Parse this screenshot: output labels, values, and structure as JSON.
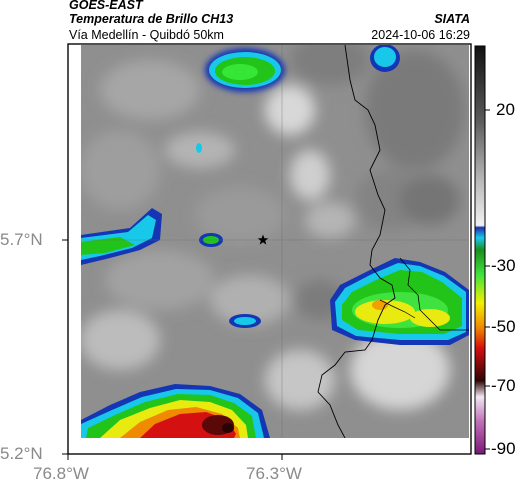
{
  "header": {
    "satellite": "GOES-EAST",
    "product": "Temperatura de Brillo CH13",
    "region": "Vía Medellín - Quibdó 50km",
    "agency": "SIATA",
    "datetime": "2024-10-06 16:29"
  },
  "map": {
    "lat_ticks": [
      "5.7°N",
      "5.2°N"
    ],
    "lon_ticks": [
      "76.8°W",
      "76.3°W"
    ],
    "marker_icon": "star-icon"
  },
  "colorbar": {
    "ticks": [
      "20",
      "-30",
      "-50",
      "-70",
      "-90"
    ]
  },
  "colors": {
    "grey_background": "#8c8c8c",
    "cold_cloud_green": "#22c41a",
    "yellow": "#f0ea00",
    "red": "#d41010",
    "dark_red": "#5a0808",
    "blue_edge": "#1436b4",
    "cyan_edge": "#18c8e8"
  }
}
